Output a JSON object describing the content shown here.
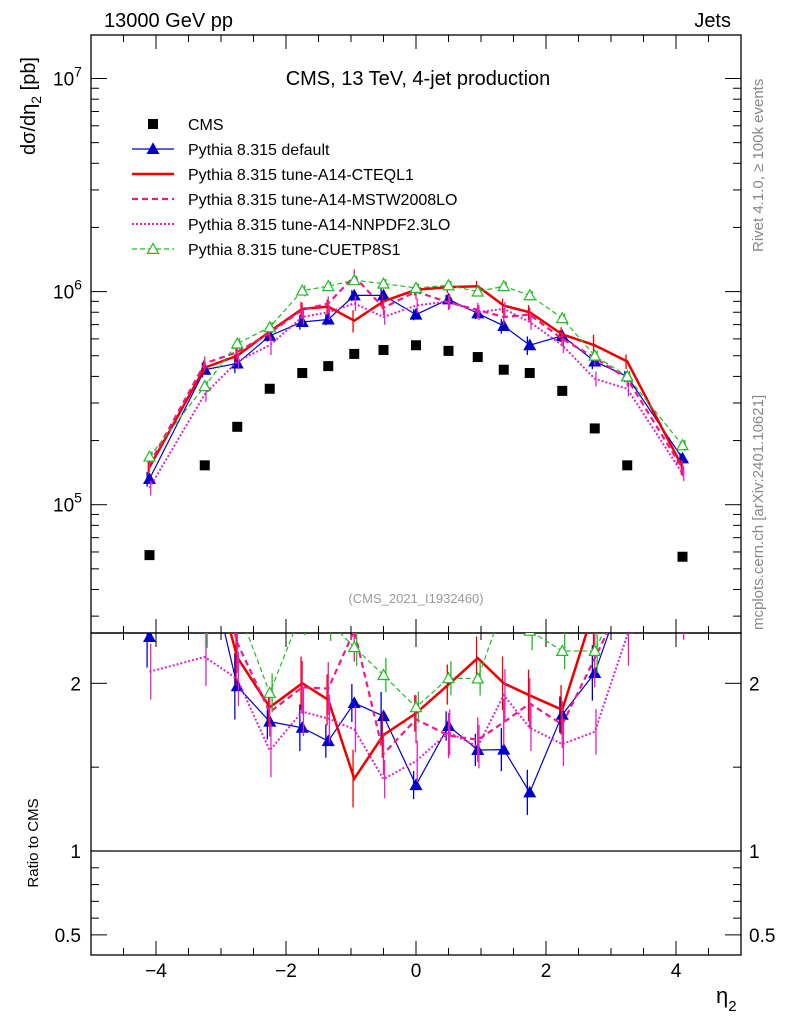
{
  "header": {
    "left": "13000 GeV pp",
    "right": "Jets"
  },
  "side_labels": {
    "rivet": "Rivet 4.1.0, ≥ 100k events",
    "mcplots": "mcplots.cern.ch [arXiv:2401.10621]"
  },
  "watermark": "(CMS_2021_I1932460)",
  "chart_data": {
    "type": "line",
    "title": "CMS, 13 TeV, 4-jet production",
    "ylabel": "dσ/dη",
    "ylabel_sub": "2",
    "ylabel_unit": " [pb]",
    "xlabel": "η",
    "xlabel_sub": "2",
    "ratio_ylabel": "Ratio to CMS",
    "yscale": "log",
    "ylim": [
      25000,
      16000000
    ],
    "xlim": [
      -5,
      5
    ],
    "ratio_ylim": [
      0.38,
      2.3
    ],
    "x_ticks": [
      {
        "v": -4,
        "label": "−4"
      },
      {
        "v": -2,
        "label": "−2"
      },
      {
        "v": 0,
        "label": "0"
      },
      {
        "v": 2,
        "label": "2"
      },
      {
        "v": 4,
        "label": "4"
      }
    ],
    "y_ticks": [
      {
        "v": 100000,
        "base": "10",
        "exp": "5"
      },
      {
        "v": 1000000,
        "base": "10",
        "exp": "6"
      },
      {
        "v": 10000000,
        "base": "10",
        "exp": "7"
      }
    ],
    "ratio_ticks": [
      {
        "v": 0.5,
        "label": "0.5"
      },
      {
        "v": 1,
        "label": "1"
      },
      {
        "v": 2,
        "label": "2"
      }
    ],
    "x": [
      -4.1,
      -3.25,
      -2.75,
      -2.25,
      -1.75,
      -1.35,
      -0.95,
      -0.5,
      0,
      0.5,
      0.95,
      1.35,
      1.75,
      2.25,
      2.75,
      3.25,
      4.1
    ],
    "data": {
      "name": "CMS",
      "values": [
        58000,
        153000,
        232000,
        350000,
        415000,
        447000,
        510000,
        532000,
        560000,
        527000,
        493000,
        430000,
        415000,
        342000,
        228000,
        153000,
        57000
      ]
    },
    "series": [
      {
        "name": "Pythia 8.315 default",
        "color": "#0000cc",
        "dash": "",
        "width": 1.2,
        "marker": "triangle-filled",
        "values": [
          132000,
          430000,
          460000,
          620000,
          720000,
          740000,
          960000,
          960000,
          780000,
          920000,
          790000,
          690000,
          560000,
          620000,
          470000,
          400000,
          165000
        ],
        "err": [
          0.08,
          0.08,
          0.1,
          0.06,
          0.08,
          0.06,
          0.06,
          0.08,
          0.06,
          0.05,
          0.06,
          0.08,
          0.1,
          0.06,
          0.08,
          0.06,
          0.06
        ]
      },
      {
        "name": "Pythia 8.315 tune-A14-CTEQL1",
        "color": "#ee0000",
        "dash": "",
        "width": 2.5,
        "marker": "none",
        "values": [
          150000,
          440000,
          500000,
          650000,
          830000,
          850000,
          730000,
          900000,
          1020000,
          1050000,
          1060000,
          860000,
          800000,
          630000,
          560000,
          470000,
          150000
        ],
        "err": [
          0.08,
          0.08,
          0.08,
          0.06,
          0.08,
          0.08,
          0.12,
          0.08,
          0.06,
          0.06,
          0.06,
          0.08,
          0.08,
          0.08,
          0.12,
          0.08,
          0.08
        ]
      },
      {
        "name": "Pythia 8.315 tune-A14-MSTW2008LO",
        "color": "#ee1a8c",
        "dash": "6,4",
        "width": 2.2,
        "marker": "none",
        "values": [
          155000,
          460000,
          520000,
          640000,
          820000,
          880000,
          1180000,
          840000,
          1000000,
          890000,
          820000,
          760000,
          780000,
          600000,
          490000,
          390000,
          148000
        ],
        "err": [
          0.08,
          0.08,
          0.08,
          0.08,
          0.08,
          0.08,
          0.08,
          0.08,
          0.08,
          0.08,
          0.08,
          0.08,
          0.08,
          0.08,
          0.08,
          0.08,
          0.08
        ]
      },
      {
        "name": "Pythia 8.315 tune-A14-NNPDF2.3LO",
        "color": "#dd22cc",
        "dash": "2,2",
        "width": 2.0,
        "marker": "none",
        "values": [
          120000,
          330000,
          470000,
          560000,
          760000,
          800000,
          880000,
          760000,
          860000,
          900000,
          800000,
          830000,
          720000,
          560000,
          390000,
          350000,
          140000
        ],
        "err": [
          0.08,
          0.08,
          0.08,
          0.1,
          0.08,
          0.08,
          0.08,
          0.08,
          0.08,
          0.08,
          0.08,
          0.08,
          0.08,
          0.08,
          0.08,
          0.08,
          0.08
        ]
      },
      {
        "name": "Pythia 8.315 tune-CUETP8S1",
        "color": "#22bb22",
        "dash": "5,3",
        "width": 1.2,
        "marker": "triangle-open",
        "values": [
          168000,
          360000,
          570000,
          680000,
          1010000,
          1060000,
          1130000,
          1090000,
          1040000,
          1070000,
          1000000,
          1060000,
          960000,
          750000,
          500000,
          400000,
          190000
        ],
        "err": [
          0.06,
          0.06,
          0.06,
          0.06,
          0.06,
          0.05,
          0.05,
          0.05,
          0.05,
          0.05,
          0.05,
          0.05,
          0.05,
          0.05,
          0.06,
          0.06,
          0.06
        ]
      }
    ]
  }
}
